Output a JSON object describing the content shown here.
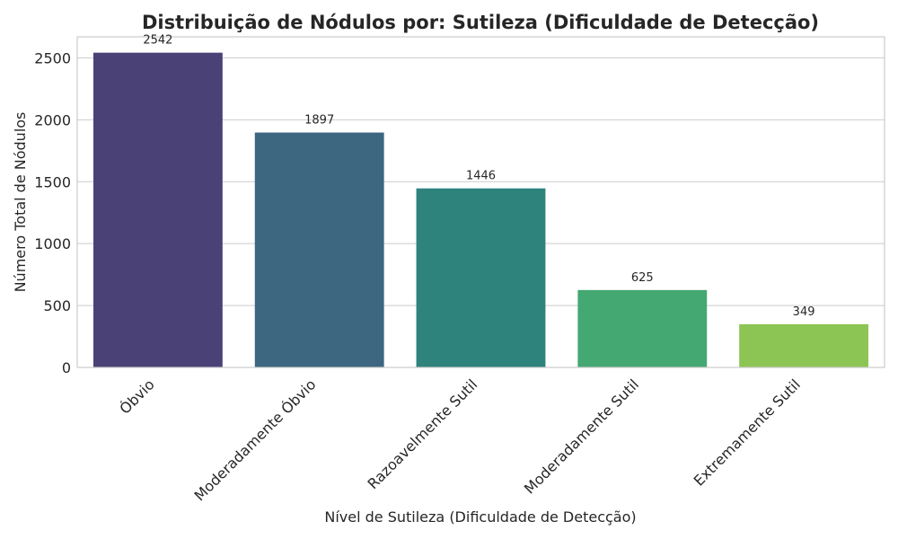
{
  "chart_data": {
    "type": "bar",
    "title": "Distribuição de Nódulos por: Sutileza (Dificuldade de Detecção)",
    "xlabel": "Nível de Sutileza (Dificuldade de Detecção)",
    "ylabel": "Número Total de Nódulos",
    "categories": [
      "Óbvio",
      "Moderadamente Óbvio",
      "Razoavelmente Sutil",
      "Moderadamente Sutil",
      "Extremamente Sutil"
    ],
    "values": [
      2542,
      1897,
      1446,
      625,
      349
    ],
    "data_labels": [
      "2542",
      "1897",
      "1446",
      "625",
      "349"
    ],
    "colors": [
      "#4a4277",
      "#3d6680",
      "#2e837c",
      "#44a873",
      "#8dc554"
    ],
    "ylim": [
      0,
      2670
    ],
    "yticks": [
      0,
      500,
      1000,
      1500,
      2000,
      2500
    ],
    "ytick_labels": [
      "0",
      "500",
      "1000",
      "1500",
      "2000",
      "2500"
    ],
    "grid": "horizontal",
    "x_tick_rotation": -45
  }
}
